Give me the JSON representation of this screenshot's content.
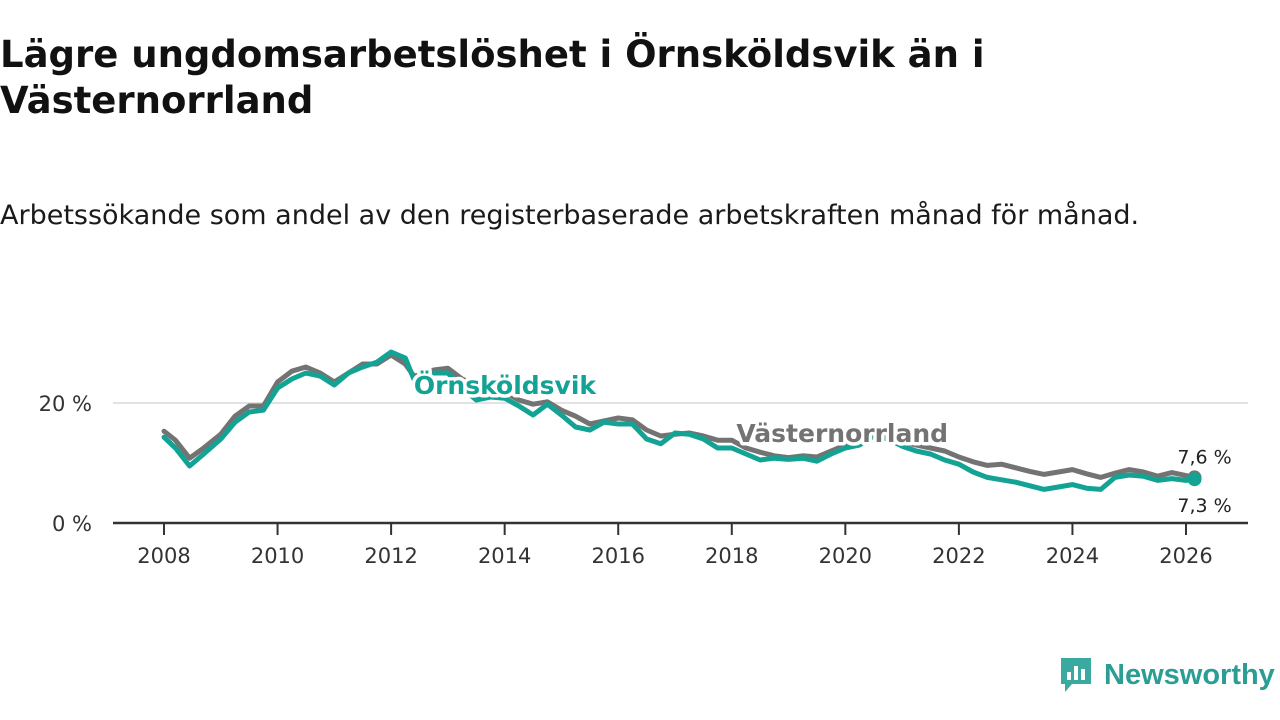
{
  "header": {
    "title": "Lägre ungdomsarbetslöshet i Örnsköldsvik än i Västernorrland",
    "subtitle": "Arbetssökande som andel av den registerbaserade arbetskraften månad för månad."
  },
  "brand": {
    "name": "Newsworthy",
    "icon": "newsworthy-logo-icon",
    "color": "#3aa99f"
  },
  "chart_data": {
    "type": "line",
    "title": "Lägre ungdomsarbetslöshet i Örnsköldsvik än i Västernorrland",
    "subtitle": "Arbetssökande som andel av den registerbaserade arbetskraften månad för månad.",
    "xlabel": "",
    "ylabel": "",
    "xlim": [
      2007.5,
      2026.8
    ],
    "ylim": [
      0,
      30
    ],
    "grid": "horizontal",
    "x_ticks": [
      {
        "value": 2008,
        "label": "2008"
      },
      {
        "value": 2010,
        "label": "2010"
      },
      {
        "value": 2012,
        "label": "2012"
      },
      {
        "value": 2014,
        "label": "2014"
      },
      {
        "value": 2016,
        "label": "2016"
      },
      {
        "value": 2018,
        "label": "2018"
      },
      {
        "value": 2020,
        "label": "2020"
      },
      {
        "value": 2022,
        "label": "2022"
      },
      {
        "value": 2024,
        "label": "2024"
      },
      {
        "value": 2026,
        "label": "2026"
      }
    ],
    "y_ticks": [
      {
        "value": 0,
        "label": "0 %"
      },
      {
        "value": 20,
        "label": "20 %"
      }
    ],
    "series": [
      {
        "name": "Västernorrland",
        "color": "#737373",
        "label_pos": [
          2018.08,
          13.5
        ],
        "end_label": "7,6 %",
        "points": [
          [
            2008.0,
            15.3
          ],
          [
            2008.2,
            13.8
          ],
          [
            2008.45,
            10.8
          ],
          [
            2008.7,
            12.5
          ],
          [
            2009.0,
            14.8
          ],
          [
            2009.25,
            17.8
          ],
          [
            2009.5,
            19.5
          ],
          [
            2009.75,
            19.5
          ],
          [
            2010.0,
            23.5
          ],
          [
            2010.25,
            25.3
          ],
          [
            2010.5,
            26.0
          ],
          [
            2010.75,
            25.0
          ],
          [
            2011.0,
            23.5
          ],
          [
            2011.25,
            25.0
          ],
          [
            2011.5,
            26.5
          ],
          [
            2011.75,
            26.5
          ],
          [
            2012.0,
            28.0
          ],
          [
            2012.25,
            26.5
          ],
          [
            2012.4,
            24.5
          ],
          [
            2012.6,
            24.8
          ],
          [
            2012.75,
            25.5
          ],
          [
            2013.0,
            25.8
          ],
          [
            2013.25,
            24.0
          ],
          [
            2013.5,
            23.0
          ],
          [
            2013.75,
            21.5
          ],
          [
            2014.0,
            21.8
          ],
          [
            2014.25,
            20.5
          ],
          [
            2014.5,
            19.8
          ],
          [
            2014.75,
            20.2
          ],
          [
            2015.0,
            18.8
          ],
          [
            2015.25,
            17.8
          ],
          [
            2015.5,
            16.5
          ],
          [
            2015.75,
            17.0
          ],
          [
            2016.0,
            17.5
          ],
          [
            2016.25,
            17.2
          ],
          [
            2016.5,
            15.5
          ],
          [
            2016.75,
            14.5
          ],
          [
            2017.0,
            14.8
          ],
          [
            2017.25,
            15.0
          ],
          [
            2017.5,
            14.5
          ],
          [
            2017.75,
            13.8
          ],
          [
            2018.0,
            13.8
          ],
          [
            2018.25,
            12.5
          ],
          [
            2018.5,
            11.8
          ],
          [
            2018.75,
            11.2
          ],
          [
            2019.0,
            10.9
          ],
          [
            2019.25,
            11.2
          ],
          [
            2019.5,
            11.0
          ],
          [
            2019.75,
            12.0
          ],
          [
            2020.0,
            13.0
          ],
          [
            2020.25,
            13.5
          ],
          [
            2020.5,
            15.0
          ],
          [
            2020.75,
            14.5
          ],
          [
            2021.0,
            13.5
          ],
          [
            2021.25,
            13.0
          ],
          [
            2021.5,
            12.5
          ],
          [
            2021.75,
            12.0
          ],
          [
            2022.0,
            11.0
          ],
          [
            2022.25,
            10.2
          ],
          [
            2022.5,
            9.6
          ],
          [
            2022.75,
            9.8
          ],
          [
            2023.0,
            9.2
          ],
          [
            2023.25,
            8.6
          ],
          [
            2023.5,
            8.1
          ],
          [
            2023.75,
            8.5
          ],
          [
            2024.0,
            8.9
          ],
          [
            2024.25,
            8.2
          ],
          [
            2024.5,
            7.6
          ],
          [
            2024.75,
            8.3
          ],
          [
            2025.0,
            8.9
          ],
          [
            2025.25,
            8.5
          ],
          [
            2025.5,
            7.8
          ],
          [
            2025.75,
            8.4
          ],
          [
            2026.0,
            7.9
          ],
          [
            2026.15,
            7.6
          ]
        ]
      },
      {
        "name": "Örnsköldsvik",
        "color": "#13a395",
        "label_pos": [
          2012.4,
          21.5
        ],
        "end_label": "7,3 %",
        "points": [
          [
            2008.0,
            14.3
          ],
          [
            2008.2,
            12.5
          ],
          [
            2008.45,
            9.5
          ],
          [
            2008.7,
            11.5
          ],
          [
            2009.0,
            14.0
          ],
          [
            2009.25,
            16.8
          ],
          [
            2009.5,
            18.5
          ],
          [
            2009.75,
            18.8
          ],
          [
            2010.0,
            22.5
          ],
          [
            2010.25,
            24.0
          ],
          [
            2010.5,
            25.0
          ],
          [
            2010.75,
            24.5
          ],
          [
            2011.0,
            23.0
          ],
          [
            2011.25,
            25.0
          ],
          [
            2011.5,
            26.0
          ],
          [
            2011.75,
            26.8
          ],
          [
            2012.0,
            28.5
          ],
          [
            2012.25,
            27.5
          ],
          [
            2012.4,
            24.0
          ],
          [
            2012.6,
            24.2
          ],
          [
            2012.75,
            25.0
          ],
          [
            2013.0,
            25.0
          ],
          [
            2013.25,
            22.5
          ],
          [
            2013.5,
            20.5
          ],
          [
            2013.75,
            21.0
          ],
          [
            2014.0,
            20.8
          ],
          [
            2014.25,
            19.5
          ],
          [
            2014.5,
            18.0
          ],
          [
            2014.75,
            19.8
          ],
          [
            2015.0,
            18.0
          ],
          [
            2015.25,
            16.0
          ],
          [
            2015.5,
            15.5
          ],
          [
            2015.75,
            16.8
          ],
          [
            2016.0,
            16.5
          ],
          [
            2016.25,
            16.5
          ],
          [
            2016.5,
            14.0
          ],
          [
            2016.75,
            13.2
          ],
          [
            2017.0,
            15.0
          ],
          [
            2017.25,
            14.8
          ],
          [
            2017.5,
            14.0
          ],
          [
            2017.75,
            12.5
          ],
          [
            2018.0,
            12.5
          ],
          [
            2018.25,
            11.5
          ],
          [
            2018.5,
            10.5
          ],
          [
            2018.75,
            10.8
          ],
          [
            2019.0,
            10.6
          ],
          [
            2019.25,
            10.8
          ],
          [
            2019.5,
            10.3
          ],
          [
            2019.75,
            11.5
          ],
          [
            2020.0,
            12.5
          ],
          [
            2020.25,
            13.0
          ],
          [
            2020.5,
            14.5
          ],
          [
            2020.75,
            14.0
          ],
          [
            2021.0,
            12.8
          ],
          [
            2021.25,
            12.0
          ],
          [
            2021.5,
            11.5
          ],
          [
            2021.75,
            10.5
          ],
          [
            2022.0,
            9.8
          ],
          [
            2022.25,
            8.5
          ],
          [
            2022.5,
            7.6
          ],
          [
            2022.75,
            7.2
          ],
          [
            2023.0,
            6.8
          ],
          [
            2023.25,
            6.2
          ],
          [
            2023.5,
            5.6
          ],
          [
            2023.75,
            6.0
          ],
          [
            2024.0,
            6.4
          ],
          [
            2024.25,
            5.8
          ],
          [
            2024.5,
            5.6
          ],
          [
            2024.75,
            7.6
          ],
          [
            2025.0,
            8.0
          ],
          [
            2025.25,
            7.8
          ],
          [
            2025.5,
            7.1
          ],
          [
            2025.75,
            7.4
          ],
          [
            2026.0,
            7.1
          ],
          [
            2026.15,
            7.3
          ]
        ]
      }
    ]
  }
}
